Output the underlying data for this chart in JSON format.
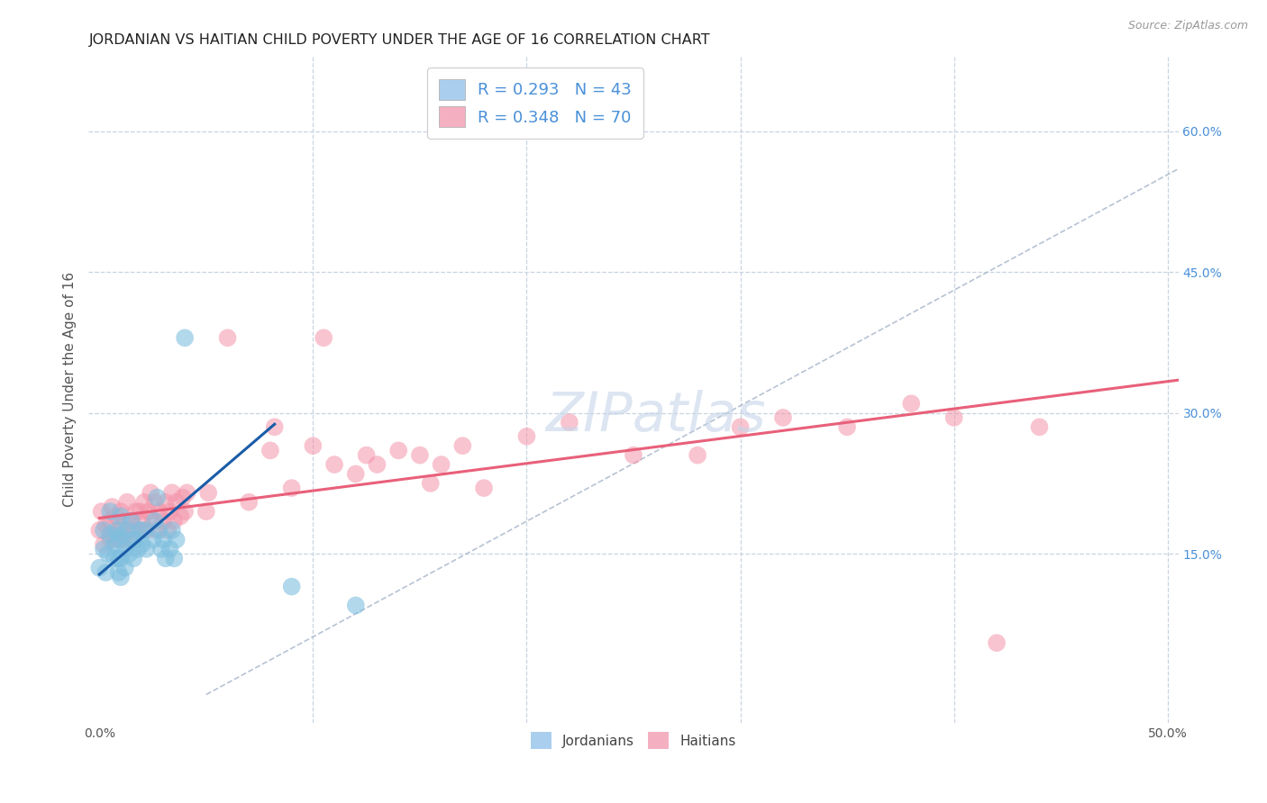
{
  "title": "JORDANIAN VS HAITIAN CHILD POVERTY UNDER THE AGE OF 16 CORRELATION CHART",
  "source": "Source: ZipAtlas.com",
  "ylabel": "Child Poverty Under the Age of 16",
  "right_yticks": [
    "60.0%",
    "45.0%",
    "30.0%",
    "15.0%"
  ],
  "right_ytick_vals": [
    0.6,
    0.45,
    0.3,
    0.15
  ],
  "xlim": [
    -0.005,
    0.505
  ],
  "ylim": [
    -0.03,
    0.68
  ],
  "watermark_text": "ZIPatlas",
  "jordanian_color": "#7fbfdf",
  "haitian_color": "#f495aa",
  "jordanian_line_color": "#1a5ca8",
  "haitian_line_color": "#e8607a",
  "ref_line_color": "#aab8cc",
  "background_color": "#ffffff",
  "grid_color": "#c8d4e0",
  "legend_j_color": "#aacfee",
  "legend_h_color": "#f4b0c0",
  "legend_text_color": "#4a90d9",
  "jordanian_line_x": [
    0.0,
    0.082
  ],
  "jordanian_line_y": [
    0.128,
    0.288
  ],
  "haitian_line_x": [
    0.0,
    0.505
  ],
  "haitian_line_y": [
    0.188,
    0.335
  ],
  "ref_line_x": [
    0.05,
    0.505
  ],
  "ref_line_y": [
    0.0,
    0.56
  ],
  "jordanian_points": [
    [
      0.0,
      0.135
    ],
    [
      0.002,
      0.155
    ],
    [
      0.002,
      0.175
    ],
    [
      0.003,
      0.13
    ],
    [
      0.004,
      0.15
    ],
    [
      0.005,
      0.17
    ],
    [
      0.005,
      0.195
    ],
    [
      0.007,
      0.145
    ],
    [
      0.007,
      0.16
    ],
    [
      0.008,
      0.175
    ],
    [
      0.009,
      0.13
    ],
    [
      0.009,
      0.145
    ],
    [
      0.009,
      0.165
    ],
    [
      0.01,
      0.125
    ],
    [
      0.01,
      0.145
    ],
    [
      0.01,
      0.17
    ],
    [
      0.01,
      0.19
    ],
    [
      0.012,
      0.135
    ],
    [
      0.012,
      0.155
    ],
    [
      0.013,
      0.175
    ],
    [
      0.014,
      0.15
    ],
    [
      0.015,
      0.165
    ],
    [
      0.015,
      0.185
    ],
    [
      0.016,
      0.145
    ],
    [
      0.017,
      0.165
    ],
    [
      0.018,
      0.155
    ],
    [
      0.019,
      0.175
    ],
    [
      0.02,
      0.16
    ],
    [
      0.021,
      0.175
    ],
    [
      0.022,
      0.155
    ],
    [
      0.025,
      0.165
    ],
    [
      0.026,
      0.185
    ],
    [
      0.027,
      0.21
    ],
    [
      0.028,
      0.175
    ],
    [
      0.029,
      0.155
    ],
    [
      0.03,
      0.165
    ],
    [
      0.031,
      0.145
    ],
    [
      0.033,
      0.155
    ],
    [
      0.034,
      0.175
    ],
    [
      0.035,
      0.145
    ],
    [
      0.036,
      0.165
    ],
    [
      0.04,
      0.38
    ],
    [
      0.09,
      0.115
    ],
    [
      0.12,
      0.095
    ]
  ],
  "haitian_points": [
    [
      0.0,
      0.175
    ],
    [
      0.001,
      0.195
    ],
    [
      0.002,
      0.16
    ],
    [
      0.003,
      0.18
    ],
    [
      0.005,
      0.165
    ],
    [
      0.005,
      0.185
    ],
    [
      0.006,
      0.2
    ],
    [
      0.007,
      0.17
    ],
    [
      0.008,
      0.19
    ],
    [
      0.009,
      0.165
    ],
    [
      0.01,
      0.175
    ],
    [
      0.01,
      0.195
    ],
    [
      0.011,
      0.165
    ],
    [
      0.012,
      0.185
    ],
    [
      0.013,
      0.205
    ],
    [
      0.014,
      0.175
    ],
    [
      0.015,
      0.185
    ],
    [
      0.016,
      0.165
    ],
    [
      0.017,
      0.195
    ],
    [
      0.018,
      0.175
    ],
    [
      0.019,
      0.195
    ],
    [
      0.02,
      0.185
    ],
    [
      0.021,
      0.205
    ],
    [
      0.022,
      0.175
    ],
    [
      0.023,
      0.195
    ],
    [
      0.024,
      0.215
    ],
    [
      0.025,
      0.185
    ],
    [
      0.026,
      0.205
    ],
    [
      0.027,
      0.175
    ],
    [
      0.028,
      0.195
    ],
    [
      0.03,
      0.185
    ],
    [
      0.031,
      0.205
    ],
    [
      0.032,
      0.175
    ],
    [
      0.033,
      0.195
    ],
    [
      0.034,
      0.215
    ],
    [
      0.035,
      0.185
    ],
    [
      0.036,
      0.205
    ],
    [
      0.038,
      0.19
    ],
    [
      0.039,
      0.21
    ],
    [
      0.04,
      0.195
    ],
    [
      0.041,
      0.215
    ],
    [
      0.05,
      0.195
    ],
    [
      0.051,
      0.215
    ],
    [
      0.06,
      0.38
    ],
    [
      0.07,
      0.205
    ],
    [
      0.08,
      0.26
    ],
    [
      0.082,
      0.285
    ],
    [
      0.09,
      0.22
    ],
    [
      0.1,
      0.265
    ],
    [
      0.105,
      0.38
    ],
    [
      0.11,
      0.245
    ],
    [
      0.12,
      0.235
    ],
    [
      0.125,
      0.255
    ],
    [
      0.13,
      0.245
    ],
    [
      0.14,
      0.26
    ],
    [
      0.15,
      0.255
    ],
    [
      0.155,
      0.225
    ],
    [
      0.16,
      0.245
    ],
    [
      0.17,
      0.265
    ],
    [
      0.18,
      0.22
    ],
    [
      0.2,
      0.275
    ],
    [
      0.22,
      0.29
    ],
    [
      0.25,
      0.255
    ],
    [
      0.28,
      0.255
    ],
    [
      0.3,
      0.285
    ],
    [
      0.32,
      0.295
    ],
    [
      0.35,
      0.285
    ],
    [
      0.38,
      0.31
    ],
    [
      0.4,
      0.295
    ],
    [
      0.42,
      0.055
    ],
    [
      0.44,
      0.285
    ]
  ]
}
